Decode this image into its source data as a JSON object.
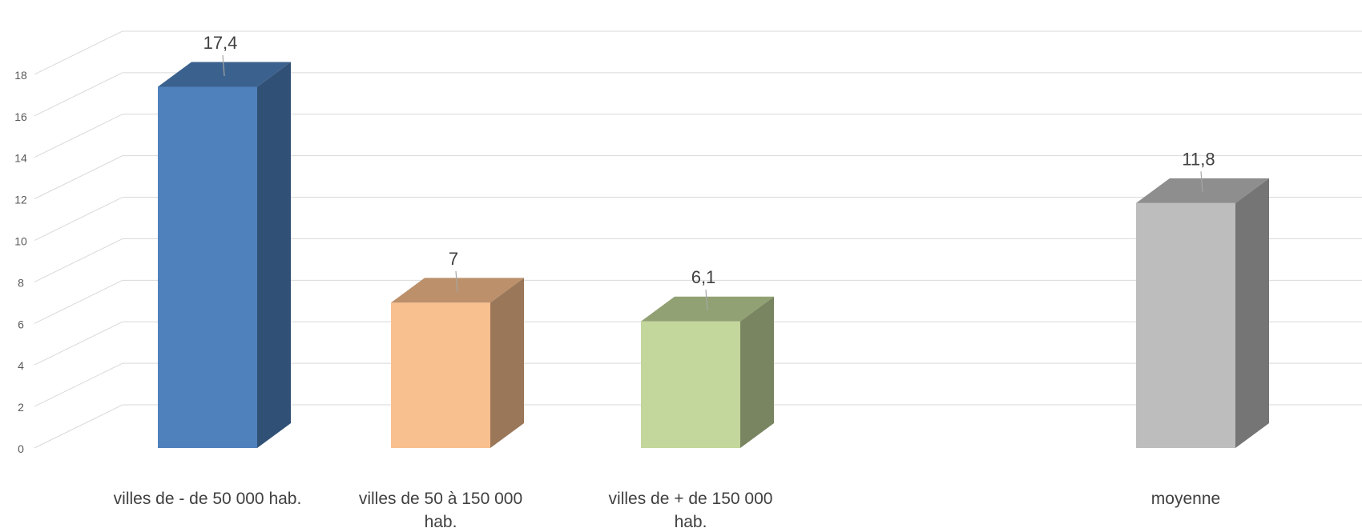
{
  "chart_data": {
    "type": "bar",
    "three_d": true,
    "title": "",
    "xlabel": "",
    "ylabel": "",
    "categories": [
      "villes de - de 50 000 hab.",
      "villes de 50 à 150 000 hab.",
      "villes de + de 150 000 hab.",
      "moyenne"
    ],
    "values": [
      17.4,
      7,
      6.1,
      11.8
    ],
    "value_labels": [
      "17,4",
      "7",
      "6,1",
      "11,8"
    ],
    "colors": [
      "#4F81BD",
      "#F9C08F",
      "#C3D69B",
      "#BDBDBD"
    ],
    "y_ticks": [
      "0",
      "2",
      "4",
      "6",
      "8",
      "10",
      "12",
      "14",
      "16",
      "18"
    ],
    "ylim": [
      0,
      19
    ],
    "grid": true,
    "legend": "none"
  }
}
